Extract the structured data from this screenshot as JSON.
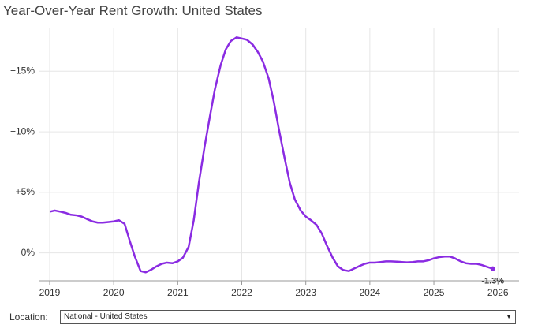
{
  "chart_data": {
    "type": "line",
    "title": "Year-Over-Year Rent Growth: United States",
    "x": [
      2019.0,
      2019.08,
      2019.17,
      2019.25,
      2019.33,
      2019.42,
      2019.5,
      2019.58,
      2019.67,
      2019.75,
      2019.83,
      2019.92,
      2020.0,
      2020.08,
      2020.17,
      2020.25,
      2020.33,
      2020.42,
      2020.5,
      2020.58,
      2020.67,
      2020.75,
      2020.83,
      2020.92,
      2021.0,
      2021.08,
      2021.17,
      2021.25,
      2021.33,
      2021.42,
      2021.5,
      2021.58,
      2021.67,
      2021.75,
      2021.83,
      2021.92,
      2022.0,
      2022.08,
      2022.17,
      2022.25,
      2022.33,
      2022.42,
      2022.5,
      2022.58,
      2022.67,
      2022.75,
      2022.83,
      2022.92,
      2023.0,
      2023.08,
      2023.17,
      2023.25,
      2023.33,
      2023.42,
      2023.5,
      2023.58,
      2023.67,
      2023.75,
      2023.83,
      2023.92,
      2024.0,
      2024.08,
      2024.17,
      2024.25,
      2024.33,
      2024.42,
      2024.5,
      2024.58,
      2024.67,
      2024.75,
      2024.83,
      2024.92,
      2025.0,
      2025.08,
      2025.17,
      2025.25,
      2025.33,
      2025.42,
      2025.5,
      2025.58,
      2025.67,
      2025.75,
      2025.83,
      2025.92
    ],
    "series": [
      {
        "color": "#8a2be2",
        "values": [
          3.4,
          3.5,
          3.4,
          3.3,
          3.15,
          3.1,
          3.0,
          2.8,
          2.6,
          2.5,
          2.5,
          2.55,
          2.6,
          2.7,
          2.4,
          1.0,
          -0.3,
          -1.5,
          -1.6,
          -1.4,
          -1.1,
          -0.9,
          -0.8,
          -0.85,
          -0.7,
          -0.4,
          0.5,
          2.7,
          5.8,
          8.8,
          11.2,
          13.5,
          15.5,
          16.8,
          17.5,
          17.8,
          17.7,
          17.6,
          17.2,
          16.6,
          15.8,
          14.4,
          12.5,
          10.2,
          7.8,
          5.8,
          4.4,
          3.5,
          3.0,
          2.7,
          2.3,
          1.6,
          0.6,
          -0.4,
          -1.1,
          -1.4,
          -1.5,
          -1.3,
          -1.1,
          -0.9,
          -0.8,
          -0.8,
          -0.75,
          -0.7,
          -0.7,
          -0.72,
          -0.75,
          -0.78,
          -0.75,
          -0.7,
          -0.7,
          -0.6,
          -0.45,
          -0.35,
          -0.3,
          -0.3,
          -0.45,
          -0.7,
          -0.85,
          -0.9,
          -0.9,
          -1.0,
          -1.15,
          -1.3
        ],
        "value_labels": [
          null,
          null,
          null,
          null,
          null,
          null,
          null,
          null,
          null,
          null,
          null,
          null,
          null,
          null,
          null,
          null,
          null,
          null,
          null,
          null,
          null,
          null,
          null,
          null,
          null,
          null,
          null,
          null,
          null,
          null,
          null,
          null,
          null,
          null,
          null,
          null,
          null,
          null,
          null,
          null,
          null,
          null,
          null,
          null,
          null,
          null,
          null,
          null,
          null,
          null,
          null,
          null,
          null,
          null,
          null,
          null,
          null,
          null,
          null,
          null,
          null,
          null,
          null,
          null,
          null,
          null,
          null,
          null,
          null,
          null,
          null,
          null,
          null,
          null,
          null,
          null,
          null,
          null,
          null,
          null,
          null,
          null,
          null,
          "-1.3%"
        ]
      }
    ],
    "xlim": [
      2018.84,
      2026.33
    ],
    "xticks": [
      2019,
      2020,
      2021,
      2022,
      2023,
      2024,
      2025,
      2026
    ],
    "ylim": [
      -2.3,
      18.6
    ],
    "yticks": [
      {
        "value": 0,
        "label": "0%"
      },
      {
        "value": 5,
        "label": "+5%"
      },
      {
        "value": 10,
        "label": "+10%"
      },
      {
        "value": 15,
        "label": "+15%"
      }
    ],
    "grid": true
  },
  "controls": {
    "label": "Location:",
    "select": "National - United States"
  }
}
